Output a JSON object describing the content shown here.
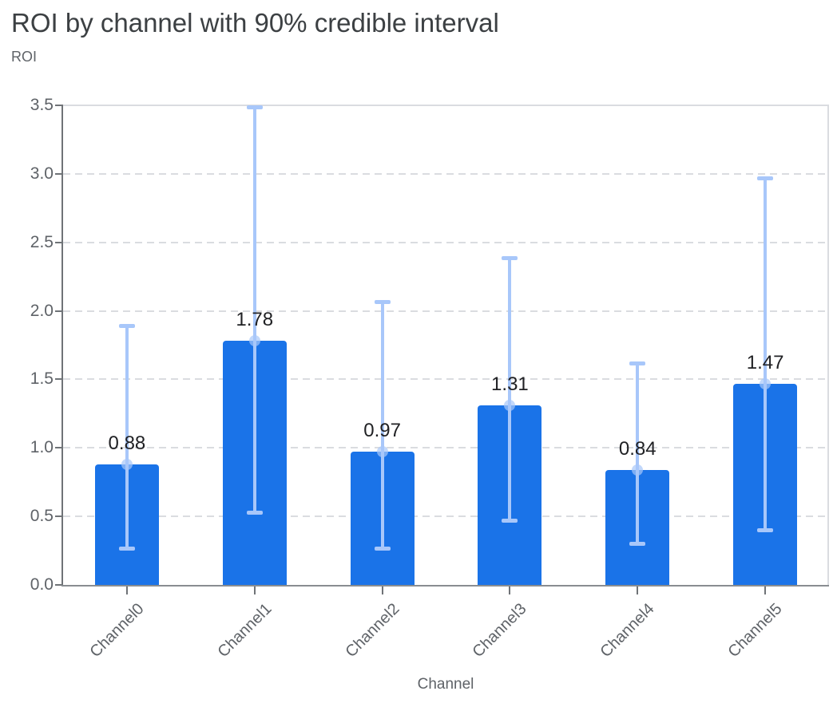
{
  "chart_data": {
    "type": "bar",
    "title": "ROI by channel with 90% credible interval",
    "ylabel": "ROI",
    "xlabel": "Channel",
    "credible_interval": "90%",
    "categories": [
      "Channel0",
      "Channel1",
      "Channel2",
      "Channel3",
      "Channel4",
      "Channel5"
    ],
    "series": [
      {
        "name": "ROI",
        "values": [
          0.88,
          1.78,
          0.97,
          1.31,
          0.84,
          1.47
        ],
        "value_labels": [
          "0.88",
          "1.78",
          "0.97",
          "1.31",
          "0.84",
          "1.47"
        ],
        "ci_low": [
          0.27,
          0.53,
          0.27,
          0.47,
          0.3,
          0.4
        ],
        "ci_high": [
          1.89,
          3.49,
          2.07,
          2.39,
          1.62,
          2.97
        ]
      }
    ],
    "ylim": [
      0,
      3.5
    ],
    "yticks": [
      "0.0",
      "0.5",
      "1.0",
      "1.5",
      "2.0",
      "2.5",
      "3.0",
      "3.5"
    ],
    "grid": "horizontal-dashed",
    "legend": "none",
    "colors": {
      "bar": "#1a73e8",
      "error_bar": "#a8c7fa",
      "mean_dot": "#a8c7fa",
      "title_text": "#3c4043",
      "axis_text": "#5f6368",
      "value_label_text": "#202124",
      "gridline": "#dadce0",
      "plot_border": "#dadce0",
      "axis_line": "#6f7377",
      "baseline": "#898d91"
    }
  }
}
